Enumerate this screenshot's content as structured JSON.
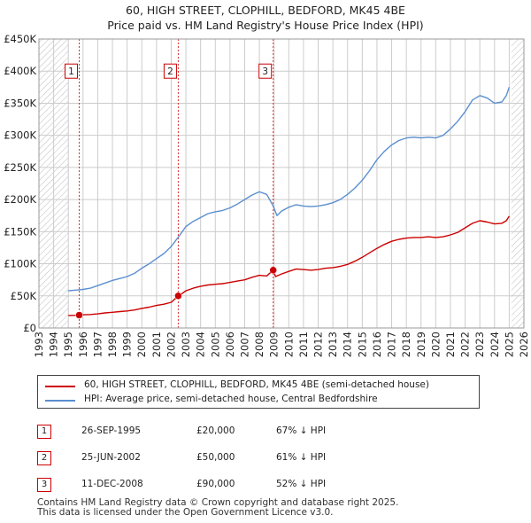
{
  "chart_data": {
    "type": "line",
    "title": "60, HIGH STREET, CLOPHILL, BEDFORD, MK45 4BE",
    "subtitle": "Price paid vs. HM Land Registry's House Price Index (HPI)",
    "x_ticks": [
      "1993",
      "1994",
      "1995",
      "1996",
      "1997",
      "1998",
      "1999",
      "2000",
      "2001",
      "2002",
      "2003",
      "2004",
      "2005",
      "2006",
      "2007",
      "2008",
      "2009",
      "2010",
      "2011",
      "2012",
      "2013",
      "2014",
      "2015",
      "2016",
      "2017",
      "2018",
      "2019",
      "2020",
      "2021",
      "2022",
      "2023",
      "2024",
      "2025",
      "2026"
    ],
    "y_ticks": [
      {
        "value": 0,
        "label": "£0"
      },
      {
        "value": 50000,
        "label": "£50K"
      },
      {
        "value": 100000,
        "label": "£100K"
      },
      {
        "value": 150000,
        "label": "£150K"
      },
      {
        "value": 200000,
        "label": "£200K"
      },
      {
        "value": 250000,
        "label": "£250K"
      },
      {
        "value": 300000,
        "label": "£300K"
      },
      {
        "value": 350000,
        "label": "£350K"
      },
      {
        "value": 400000,
        "label": "£400K"
      },
      {
        "value": 450000,
        "label": "£450K"
      }
    ],
    "xlim": [
      1993,
      2026
    ],
    "ylim": [
      0,
      450000
    ],
    "hatched_ranges": [
      [
        1993,
        1995.0
      ],
      [
        2025.15,
        2026
      ]
    ],
    "series": [
      {
        "name": "60, HIGH STREET, CLOPHILL, BEDFORD, MK45 4BE (semi-detached house)",
        "color": "#cc0000",
        "points": [
          [
            1995.0,
            19500
          ],
          [
            1995.5,
            19700
          ],
          [
            1995.74,
            20000
          ],
          [
            1996.0,
            20500
          ],
          [
            1996.5,
            21000
          ],
          [
            1997.0,
            22000
          ],
          [
            1997.5,
            23500
          ],
          [
            1998.0,
            24500
          ],
          [
            1998.5,
            25500
          ],
          [
            1999.0,
            26500
          ],
          [
            1999.5,
            28000
          ],
          [
            2000.0,
            30500
          ],
          [
            2000.5,
            32500
          ],
          [
            2001.0,
            35000
          ],
          [
            2001.5,
            37000
          ],
          [
            2002.0,
            40000
          ],
          [
            2002.48,
            50000
          ],
          [
            2002.7,
            53000
          ],
          [
            2003.0,
            58000
          ],
          [
            2003.5,
            62000
          ],
          [
            2004.0,
            65000
          ],
          [
            2004.5,
            67000
          ],
          [
            2005.0,
            68000
          ],
          [
            2005.5,
            69000
          ],
          [
            2006.0,
            71000
          ],
          [
            2006.5,
            73000
          ],
          [
            2007.0,
            75000
          ],
          [
            2007.5,
            79000
          ],
          [
            2008.0,
            82000
          ],
          [
            2008.5,
            81000
          ],
          [
            2008.94,
            90000
          ],
          [
            2009.1,
            80000
          ],
          [
            2009.5,
            84000
          ],
          [
            2010.0,
            88000
          ],
          [
            2010.5,
            92000
          ],
          [
            2011.0,
            91000
          ],
          [
            2011.5,
            90000
          ],
          [
            2012.0,
            91000
          ],
          [
            2012.5,
            93000
          ],
          [
            2013.0,
            94000
          ],
          [
            2013.5,
            96000
          ],
          [
            2014.0,
            99000
          ],
          [
            2014.5,
            104000
          ],
          [
            2015.0,
            110000
          ],
          [
            2015.5,
            117000
          ],
          [
            2016.0,
            124000
          ],
          [
            2016.5,
            130000
          ],
          [
            2017.0,
            135000
          ],
          [
            2017.5,
            138000
          ],
          [
            2018.0,
            140000
          ],
          [
            2018.5,
            141000
          ],
          [
            2019.0,
            141000
          ],
          [
            2019.5,
            142000
          ],
          [
            2020.0,
            141000
          ],
          [
            2020.5,
            142000
          ],
          [
            2021.0,
            145000
          ],
          [
            2021.5,
            149000
          ],
          [
            2022.0,
            156000
          ],
          [
            2022.5,
            163000
          ],
          [
            2023.0,
            167000
          ],
          [
            2023.5,
            165000
          ],
          [
            2024.0,
            162000
          ],
          [
            2024.5,
            163000
          ],
          [
            2024.8,
            167000
          ],
          [
            2025.0,
            174000
          ]
        ]
      },
      {
        "name": "HPI: Average price, semi-detached house, Central Bedfordshire",
        "color": "#5b8fd0",
        "points": [
          [
            1995.0,
            58000
          ],
          [
            1995.5,
            59000
          ],
          [
            1996.0,
            60000
          ],
          [
            1996.5,
            62000
          ],
          [
            1997.0,
            66000
          ],
          [
            1997.5,
            70000
          ],
          [
            1998.0,
            74000
          ],
          [
            1998.5,
            77000
          ],
          [
            1999.0,
            80000
          ],
          [
            1999.5,
            85000
          ],
          [
            2000.0,
            93000
          ],
          [
            2000.5,
            100000
          ],
          [
            2001.0,
            108000
          ],
          [
            2001.5,
            116000
          ],
          [
            2002.0,
            127000
          ],
          [
            2002.5,
            142000
          ],
          [
            2003.0,
            158000
          ],
          [
            2003.5,
            166000
          ],
          [
            2004.0,
            172000
          ],
          [
            2004.5,
            178000
          ],
          [
            2005.0,
            181000
          ],
          [
            2005.5,
            183000
          ],
          [
            2006.0,
            187000
          ],
          [
            2006.5,
            193000
          ],
          [
            2007.0,
            200000
          ],
          [
            2007.5,
            207000
          ],
          [
            2008.0,
            212000
          ],
          [
            2008.5,
            208000
          ],
          [
            2008.94,
            190000
          ],
          [
            2009.2,
            175000
          ],
          [
            2009.5,
            182000
          ],
          [
            2010.0,
            188000
          ],
          [
            2010.5,
            192000
          ],
          [
            2011.0,
            190000
          ],
          [
            2011.5,
            189000
          ],
          [
            2012.0,
            190000
          ],
          [
            2012.5,
            192000
          ],
          [
            2013.0,
            195000
          ],
          [
            2013.5,
            200000
          ],
          [
            2014.0,
            208000
          ],
          [
            2014.5,
            218000
          ],
          [
            2015.0,
            230000
          ],
          [
            2015.5,
            245000
          ],
          [
            2016.0,
            262000
          ],
          [
            2016.5,
            275000
          ],
          [
            2017.0,
            285000
          ],
          [
            2017.5,
            292000
          ],
          [
            2018.0,
            296000
          ],
          [
            2018.5,
            297000
          ],
          [
            2019.0,
            296000
          ],
          [
            2019.5,
            297000
          ],
          [
            2020.0,
            296000
          ],
          [
            2020.5,
            300000
          ],
          [
            2021.0,
            310000
          ],
          [
            2021.5,
            322000
          ],
          [
            2022.0,
            337000
          ],
          [
            2022.5,
            355000
          ],
          [
            2023.0,
            362000
          ],
          [
            2023.5,
            358000
          ],
          [
            2024.0,
            350000
          ],
          [
            2024.5,
            352000
          ],
          [
            2024.8,
            362000
          ],
          [
            2025.0,
            375000
          ]
        ]
      }
    ],
    "sales": [
      {
        "label": "1",
        "x": 1995.74,
        "y": 20000
      },
      {
        "label": "2",
        "x": 2002.48,
        "y": 50000
      },
      {
        "label": "3",
        "x": 2008.94,
        "y": 90000
      }
    ],
    "marker_box_value": 400000
  },
  "legend": {
    "property": "60, HIGH STREET, CLOPHILL, BEDFORD, MK45 4BE (semi-detached house)",
    "hpi": "HPI: Average price, semi-detached house, Central Bedfordshire"
  },
  "transactions": [
    {
      "num": "1",
      "date": "26-SEP-1995",
      "price": "£20,000",
      "hpi": "67% ↓ HPI"
    },
    {
      "num": "2",
      "date": "25-JUN-2002",
      "price": "£50,000",
      "hpi": "61% ↓ HPI"
    },
    {
      "num": "3",
      "date": "11-DEC-2008",
      "price": "£90,000",
      "hpi": "52% ↓ HPI"
    }
  ],
  "footer": {
    "line1": "Contains HM Land Registry data © Crown copyright and database right 2025.",
    "line2": "This data is licensed under the Open Government Licence v3.0."
  },
  "colors": {
    "property": "#cc0000",
    "hpi": "#5b8fd0",
    "grid": "#cccccc"
  }
}
